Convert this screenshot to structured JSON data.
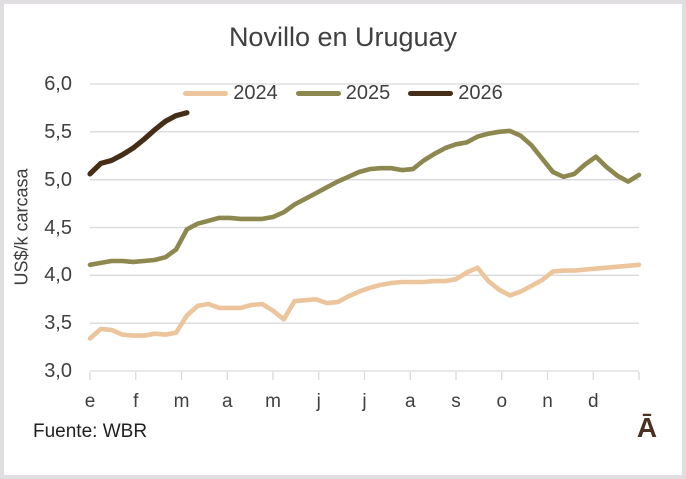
{
  "title": "Novillo en Uruguay",
  "y_axis": {
    "label": "US$/k carcasa",
    "ticks": [
      "6,0",
      "5,5",
      "5,0",
      "4,5",
      "4,0",
      "3,5",
      "3,0"
    ]
  },
  "x_axis": {
    "labels": [
      "e",
      "f",
      "m",
      "a",
      "m",
      "j",
      "j",
      "a",
      "s",
      "o",
      "n",
      "d"
    ]
  },
  "legend": [
    {
      "label": "2024",
      "color": "#ecc59d"
    },
    {
      "label": "2025",
      "color": "#8d884f"
    },
    {
      "label": "2026",
      "color": "#462d17"
    }
  ],
  "footer": {
    "source": "Fuente: WBR",
    "logo": "Ā"
  },
  "colors": {
    "grid": "#d9d9d9",
    "text": "#404040",
    "logo_brown": "#4a3120"
  },
  "chart_data": {
    "type": "line",
    "title": "Novillo en Uruguay",
    "xlabel": "",
    "ylabel": "US$/k carcasa",
    "ylim": [
      3.0,
      6.0
    ],
    "ytick_values": [
      6.0,
      5.5,
      5.0,
      4.5,
      4.0,
      3.5,
      3.0
    ],
    "x_unit": "weekly observations, January–December",
    "month_labels": [
      "e",
      "f",
      "m",
      "a",
      "m",
      "j",
      "j",
      "a",
      "s",
      "o",
      "n",
      "d"
    ],
    "grid": "horizontal",
    "legend_position": "top-center",
    "series": [
      {
        "name": "2024",
        "color": "#ecc59d",
        "values": [
          3.34,
          3.44,
          3.43,
          3.38,
          3.37,
          3.37,
          3.39,
          3.38,
          3.4,
          3.58,
          3.68,
          3.7,
          3.66,
          3.66,
          3.66,
          3.69,
          3.7,
          3.63,
          3.54,
          3.73,
          3.74,
          3.75,
          3.71,
          3.72,
          3.78,
          3.83,
          3.87,
          3.9,
          3.92,
          3.93,
          3.93,
          3.93,
          3.94,
          3.94,
          3.96,
          4.03,
          4.08,
          3.94,
          3.85,
          3.79,
          3.83,
          3.89,
          3.95,
          4.04,
          4.05,
          4.05,
          4.06,
          4.07,
          4.08,
          4.09,
          4.1,
          4.11
        ]
      },
      {
        "name": "2025",
        "color": "#8d884f",
        "values": [
          4.11,
          4.13,
          4.15,
          4.15,
          4.14,
          4.15,
          4.16,
          4.19,
          4.27,
          4.48,
          4.54,
          4.57,
          4.6,
          4.6,
          4.59,
          4.59,
          4.59,
          4.61,
          4.66,
          4.74,
          4.8,
          4.86,
          4.92,
          4.98,
          5.03,
          5.08,
          5.11,
          5.12,
          5.12,
          5.1,
          5.11,
          5.2,
          5.27,
          5.33,
          5.37,
          5.39,
          5.45,
          5.48,
          5.5,
          5.51,
          5.46,
          5.36,
          5.22,
          5.08,
          5.03,
          5.06,
          5.16,
          5.24,
          5.13,
          5.04,
          4.98,
          5.05
        ]
      },
      {
        "name": "2026",
        "color": "#462d17",
        "values": [
          5.06,
          5.17,
          5.2,
          5.26,
          5.33,
          5.42,
          5.52,
          5.61,
          5.67,
          5.7
        ]
      }
    ]
  }
}
